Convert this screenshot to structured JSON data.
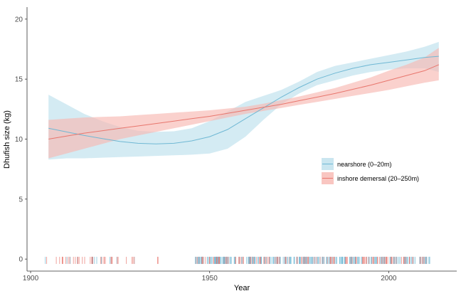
{
  "chart_data": {
    "type": "line",
    "title": "",
    "xlabel": "Year",
    "ylabel": "Dhufish size (kg)",
    "xlim": [
      1899,
      2019
    ],
    "ylim": [
      -1,
      21
    ],
    "xticks": [
      1900,
      1950,
      2000
    ],
    "yticks": [
      0,
      5,
      10,
      15,
      20
    ],
    "grid": false,
    "legend_position": "right",
    "series": [
      {
        "name": "nearshore (0–20m)",
        "color": "#6fb8d4",
        "band_color": "#bde0ec",
        "x": [
          1905,
          1910,
          1915,
          1920,
          1925,
          1930,
          1935,
          1940,
          1945,
          1950,
          1955,
          1960,
          1965,
          1970,
          1975,
          1980,
          1985,
          1990,
          1995,
          2000,
          2005,
          2010,
          2014
        ],
        "y": [
          10.9,
          10.6,
          10.3,
          10.05,
          9.8,
          9.65,
          9.6,
          9.65,
          9.85,
          10.2,
          10.8,
          11.7,
          12.6,
          13.5,
          14.3,
          15.0,
          15.5,
          15.9,
          16.2,
          16.4,
          16.6,
          16.8,
          16.9
        ],
        "lower": [
          8.3,
          8.4,
          8.4,
          8.45,
          8.5,
          8.55,
          8.6,
          8.65,
          8.7,
          8.8,
          9.2,
          10.2,
          11.6,
          12.9,
          13.8,
          14.5,
          14.9,
          15.3,
          15.6,
          15.8,
          15.9,
          15.9,
          15.6
        ],
        "upper": [
          13.7,
          12.9,
          12.1,
          11.5,
          11.0,
          10.7,
          10.6,
          10.65,
          10.9,
          11.5,
          12.3,
          13.1,
          13.6,
          14.1,
          14.8,
          15.6,
          16.1,
          16.4,
          16.7,
          17.0,
          17.3,
          17.7,
          18.1
        ]
      },
      {
        "name": "inshore demersal (20–250m)",
        "color": "#e8766d",
        "band_color": "#f7b8b2",
        "x": [
          1905,
          1910,
          1915,
          1920,
          1925,
          1930,
          1935,
          1940,
          1945,
          1950,
          1955,
          1960,
          1965,
          1970,
          1975,
          1980,
          1985,
          1990,
          1995,
          2000,
          2005,
          2010,
          2014
        ],
        "y": [
          10.0,
          10.25,
          10.5,
          10.7,
          10.9,
          11.1,
          11.3,
          11.5,
          11.7,
          11.9,
          12.15,
          12.4,
          12.65,
          12.9,
          13.2,
          13.5,
          13.8,
          14.15,
          14.5,
          14.9,
          15.3,
          15.7,
          16.2
        ],
        "lower": [
          8.4,
          8.8,
          9.2,
          9.6,
          10.0,
          10.3,
          10.6,
          10.9,
          11.2,
          11.5,
          11.8,
          12.1,
          12.35,
          12.6,
          12.85,
          13.1,
          13.35,
          13.6,
          13.85,
          14.1,
          14.4,
          14.7,
          14.9
        ],
        "upper": [
          11.6,
          11.7,
          11.8,
          11.85,
          11.9,
          12.0,
          12.1,
          12.2,
          12.3,
          12.4,
          12.55,
          12.7,
          12.95,
          13.25,
          13.55,
          13.9,
          14.25,
          14.7,
          15.15,
          15.7,
          16.2,
          16.8,
          17.6
        ]
      }
    ],
    "rug": {
      "colors": [
        "#6fb8d4",
        "#e8766d"
      ],
      "ranges": [
        [
          1904,
          1905
        ],
        [
          1907,
          1930
        ],
        [
          1935,
          1936
        ],
        [
          1946,
          2012
        ]
      ]
    }
  }
}
